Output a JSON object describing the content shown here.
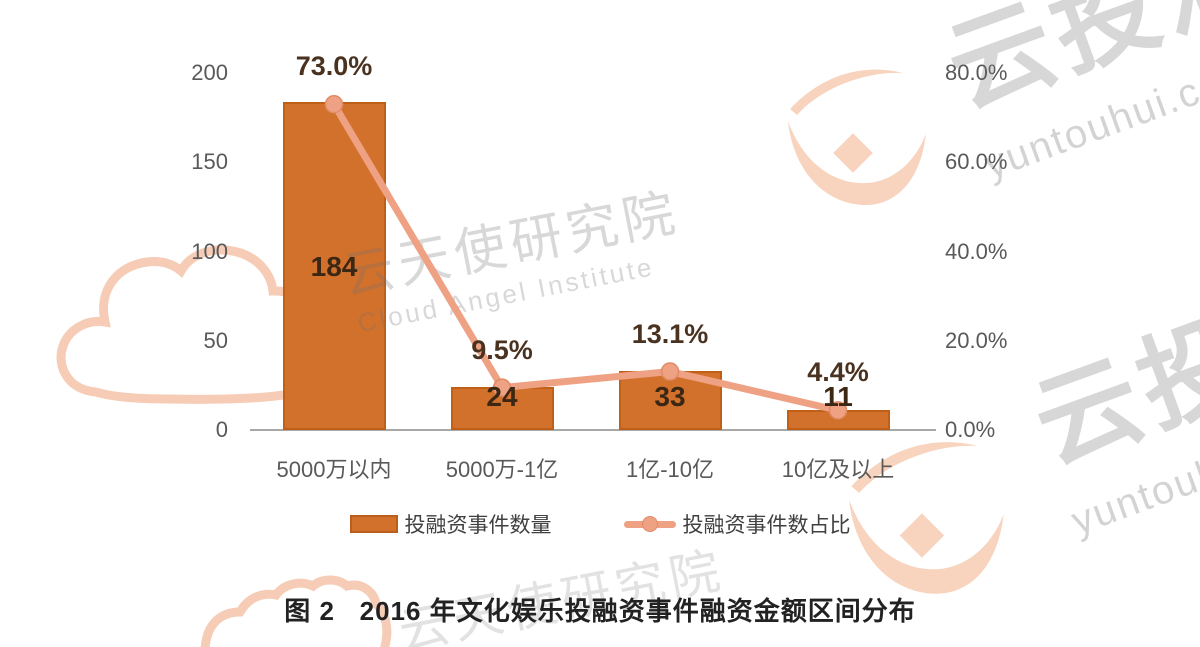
{
  "title": {
    "text": "图 2   2016 年文化娱乐投融资事件融资金额区间分布"
  },
  "legend": {
    "bar_label": "投融资事件数量",
    "line_label": "投融资事件数占比"
  },
  "watermarks": {
    "center_cn": "云天使研究院",
    "center_en": "Cloud Angel Institute",
    "corner_cn": "云投汇",
    "corner_en": "yuntouhui.c",
    "bottom_cn": "云天使研究院"
  },
  "colors": {
    "bar": "#d2712c",
    "bar_border": "#c06018",
    "line": "#efa183",
    "line_marker_edge": "#e08a66",
    "axis_line": "#a8a8a8",
    "tick_text": "#595959",
    "value_label": "#3b2713",
    "pct_label": "#4a3220",
    "watermark_peach": "#f8d3be"
  },
  "chart_data": {
    "type": "bar",
    "title": "图 2  2016 年文化娱乐投融资事件融资金额区间分布",
    "categories": [
      "5000万以内",
      "5000万-1亿",
      "1亿-10亿",
      "10亿及以上"
    ],
    "series": [
      {
        "name": "投融资事件数量",
        "type": "bar",
        "axis": "left",
        "values": [
          184,
          24,
          33,
          11
        ]
      },
      {
        "name": "投融资事件数占比",
        "type": "line",
        "axis": "right",
        "values": [
          73.0,
          9.5,
          13.1,
          4.4
        ],
        "labels": [
          "73.0%",
          "9.5%",
          "13.1%",
          "4.4%"
        ]
      }
    ],
    "left_axis": {
      "ticks": [
        "0",
        "50",
        "100",
        "150",
        "200"
      ],
      "max": 200,
      "min": 0
    },
    "right_axis": {
      "ticks": [
        "0.0%",
        "20.0%",
        "40.0%",
        "60.0%",
        "80.0%"
      ],
      "max": 80,
      "min": 0
    },
    "legend_position": "bottom",
    "grid": false,
    "xlabel": "",
    "ylabel": ""
  }
}
